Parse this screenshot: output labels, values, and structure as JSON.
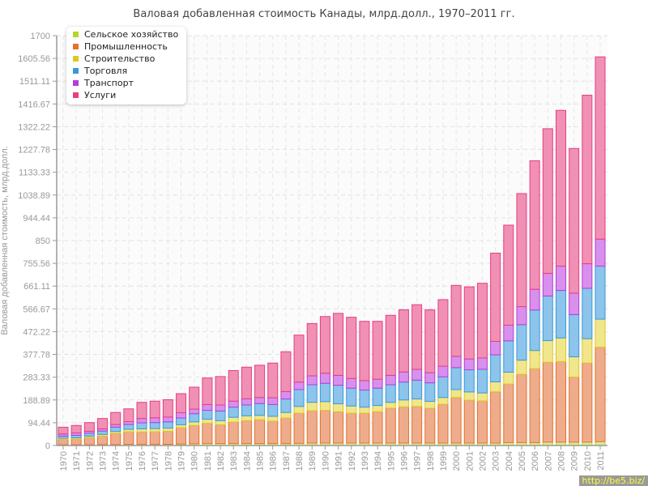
{
  "chart_data": {
    "type": "bar",
    "stacked": true,
    "title": "Валовая добавленная стоимость Канады, млрд.долл., 1970–2011 гг.",
    "xlabel": "",
    "ylabel": "Валовая добавленная стоимость, млрд.долл.",
    "ylim": [
      0,
      1700
    ],
    "yticks": [
      "0",
      "94.44",
      "188.89",
      "283.33",
      "377.78",
      "472.22",
      "566.67",
      "661.11",
      "755.56",
      "850",
      "944.44",
      "1038.89",
      "1133.33",
      "1227.78",
      "1322.22",
      "1416.67",
      "1511.11",
      "1605.56",
      "1700"
    ],
    "grid": true,
    "legend_position": "top-left",
    "categories": [
      "1970",
      "1971",
      "1972",
      "1973",
      "1974",
      "1975",
      "1976",
      "1977",
      "1978",
      "1979",
      "1980",
      "1981",
      "1982",
      "1983",
      "1984",
      "1985",
      "1986",
      "1987",
      "1988",
      "1989",
      "1990",
      "1991",
      "1992",
      "1993",
      "1994",
      "1995",
      "1996",
      "1997",
      "1998",
      "1999",
      "2000",
      "2001",
      "2002",
      "2003",
      "2004",
      "2005",
      "2006",
      "2007",
      "2008",
      "2009",
      "2010",
      "2011"
    ],
    "series": [
      {
        "name": "Сельское хозяйство",
        "color": "#b5d62a",
        "fill": "#d8ec8c",
        "values": [
          3,
          3,
          3,
          4,
          4,
          5,
          5,
          5,
          5,
          6,
          7,
          8,
          8,
          8,
          8,
          8,
          8,
          8,
          9,
          10,
          10,
          10,
          10,
          10,
          10,
          10,
          10,
          10,
          10,
          10,
          10,
          10,
          10,
          10,
          12,
          12,
          12,
          14,
          14,
          14,
          14,
          16
        ]
      },
      {
        "name": "Промышленность",
        "color": "#e8712a",
        "fill": "#eeac8c",
        "values": [
          22,
          24,
          30,
          35,
          46,
          52,
          51,
          52,
          54,
          68,
          76,
          84,
          78,
          89,
          95,
          99,
          93,
          106,
          125,
          134,
          136,
          130,
          124,
          124,
          130,
          145,
          150,
          152,
          144,
          161,
          189,
          178,
          175,
          213,
          243,
          283,
          307,
          331,
          334,
          270,
          328,
          392
        ]
      },
      {
        "name": "Строительство",
        "color": "#e0c820",
        "fill": "#f0e68c",
        "values": [
          5,
          5,
          6,
          7,
          8,
          10,
          13,
          13,
          13,
          12,
          15,
          17,
          17,
          20,
          20,
          18,
          20,
          23,
          28,
          35,
          36,
          33,
          30,
          25,
          26,
          24,
          29,
          31,
          29,
          28,
          33,
          34,
          33,
          41,
          49,
          59,
          75,
          90,
          98,
          84,
          101,
          116
        ]
      },
      {
        "name": "Торговля",
        "color": "#3a9ad8",
        "fill": "#8cc4ec",
        "values": [
          9,
          10,
          12,
          14,
          18,
          20,
          25,
          25,
          26,
          28,
          34,
          37,
          40,
          42,
          45,
          49,
          49,
          56,
          70,
          73,
          76,
          77,
          74,
          71,
          72,
          73,
          74,
          78,
          77,
          86,
          91,
          92,
          98,
          112,
          130,
          147,
          168,
          185,
          197,
          175,
          209,
          220
        ]
      },
      {
        "name": "Транспорт",
        "color": "#b040d8",
        "fill": "#d890ec",
        "values": [
          9,
          10,
          8,
          9,
          11,
          12,
          18,
          20,
          20,
          22,
          19,
          24,
          25,
          25,
          26,
          25,
          28,
          31,
          31,
          37,
          42,
          41,
          40,
          39,
          37,
          39,
          42,
          45,
          42,
          44,
          47,
          45,
          47,
          56,
          65,
          75,
          86,
          94,
          101,
          89,
          102,
          112
        ]
      },
      {
        "name": "Услуги",
        "color": "#e83e80",
        "fill": "#f090b4",
        "values": [
          28,
          31,
          36,
          43,
          50,
          53,
          67,
          69,
          72,
          79,
          91,
          110,
          118,
          127,
          131,
          134,
          144,
          165,
          195,
          217,
          235,
          257,
          254,
          246,
          240,
          249,
          258,
          268,
          261,
          276,
          294,
          299,
          310,
          366,
          415,
          469,
          533,
          600,
          646,
          600,
          699,
          756
        ]
      }
    ]
  },
  "watermark": "http://be5.biz/"
}
